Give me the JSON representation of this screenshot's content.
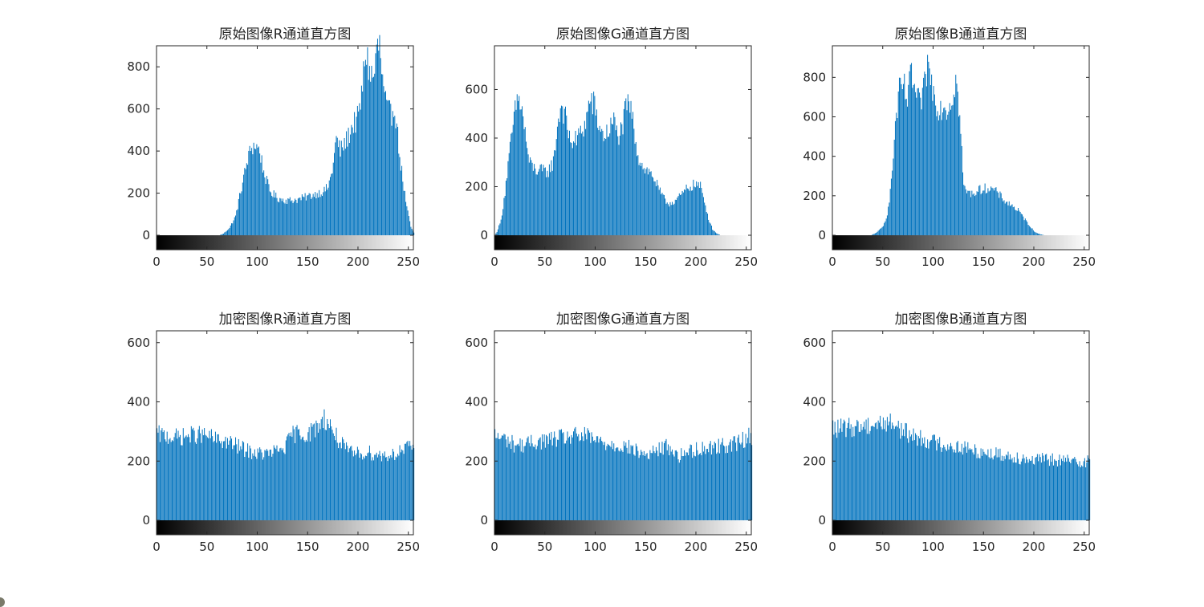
{
  "colors": {
    "bar": "#0072BD",
    "axis": "#262626",
    "background": "#ffffff"
  },
  "chart_data": [
    {
      "type": "bar",
      "title": "原始图像R通道直方图",
      "xlim": [
        0,
        255
      ],
      "ylim": [
        -70,
        900
      ],
      "xticks": [
        0,
        50,
        100,
        150,
        200,
        250
      ],
      "yticks": [
        0,
        200,
        400,
        600,
        800
      ],
      "colorbar": "grayscale",
      "profile": [
        [
          0,
          0
        ],
        [
          62,
          0
        ],
        [
          66,
          8
        ],
        [
          72,
          35
        ],
        [
          78,
          90
        ],
        [
          84,
          230
        ],
        [
          90,
          360
        ],
        [
          94,
          420
        ],
        [
          98,
          428
        ],
        [
          102,
          400
        ],
        [
          106,
          300
        ],
        [
          112,
          210
        ],
        [
          120,
          175
        ],
        [
          130,
          165
        ],
        [
          140,
          170
        ],
        [
          150,
          185
        ],
        [
          160,
          200
        ],
        [
          166,
          210
        ],
        [
          170,
          230
        ],
        [
          174,
          310
        ],
        [
          178,
          460
        ],
        [
          182,
          400
        ],
        [
          188,
          450
        ],
        [
          194,
          520
        ],
        [
          200,
          560
        ],
        [
          204,
          700
        ],
        [
          207,
          880
        ],
        [
          211,
          780
        ],
        [
          215,
          740
        ],
        [
          218,
          880
        ],
        [
          221,
          900
        ],
        [
          224,
          720
        ],
        [
          228,
          600
        ],
        [
          232,
          570
        ],
        [
          236,
          620
        ],
        [
          240,
          420
        ],
        [
          244,
          260
        ],
        [
          248,
          130
        ],
        [
          252,
          40
        ],
        [
          255,
          12
        ]
      ]
    },
    {
      "type": "bar",
      "title": "原始图像G通道直方图",
      "xlim": [
        0,
        255
      ],
      "ylim": [
        -60,
        780
      ],
      "xticks": [
        0,
        50,
        100,
        150,
        200,
        250
      ],
      "yticks": [
        0,
        200,
        400,
        600
      ],
      "colorbar": "grayscale",
      "profile": [
        [
          0,
          0
        ],
        [
          2,
          15
        ],
        [
          6,
          60
        ],
        [
          10,
          180
        ],
        [
          14,
          320
        ],
        [
          18,
          450
        ],
        [
          22,
          560
        ],
        [
          26,
          540
        ],
        [
          30,
          420
        ],
        [
          34,
          300
        ],
        [
          40,
          270
        ],
        [
          46,
          265
        ],
        [
          52,
          260
        ],
        [
          58,
          300
        ],
        [
          62,
          450
        ],
        [
          66,
          545
        ],
        [
          70,
          480
        ],
        [
          74,
          400
        ],
        [
          78,
          380
        ],
        [
          82,
          400
        ],
        [
          86,
          430
        ],
        [
          90,
          460
        ],
        [
          94,
          555
        ],
        [
          98,
          540
        ],
        [
          102,
          470
        ],
        [
          106,
          420
        ],
        [
          110,
          410
        ],
        [
          114,
          440
        ],
        [
          118,
          470
        ],
        [
          122,
          410
        ],
        [
          126,
          430
        ],
        [
          130,
          520
        ],
        [
          134,
          540
        ],
        [
          138,
          440
        ],
        [
          142,
          330
        ],
        [
          146,
          290
        ],
        [
          150,
          270
        ],
        [
          156,
          250
        ],
        [
          160,
          215
        ],
        [
          166,
          160
        ],
        [
          172,
          130
        ],
        [
          178,
          140
        ],
        [
          184,
          160
        ],
        [
          190,
          190
        ],
        [
          196,
          205
        ],
        [
          200,
          210
        ],
        [
          204,
          200
        ],
        [
          208,
          140
        ],
        [
          212,
          70
        ],
        [
          216,
          25
        ],
        [
          220,
          8
        ],
        [
          224,
          0
        ],
        [
          255,
          0
        ]
      ]
    },
    {
      "type": "bar",
      "title": "原始图像B通道直方图",
      "xlim": [
        0,
        255
      ],
      "ylim": [
        -70,
        960
      ],
      "xticks": [
        0,
        50,
        100,
        150,
        200,
        250
      ],
      "yticks": [
        0,
        200,
        400,
        600,
        800
      ],
      "colorbar": "grayscale",
      "profile": [
        [
          0,
          0
        ],
        [
          38,
          0
        ],
        [
          42,
          10
        ],
        [
          46,
          25
        ],
        [
          50,
          45
        ],
        [
          54,
          110
        ],
        [
          58,
          260
        ],
        [
          62,
          560
        ],
        [
          66,
          720
        ],
        [
          70,
          760
        ],
        [
          74,
          680
        ],
        [
          78,
          820
        ],
        [
          82,
          710
        ],
        [
          86,
          660
        ],
        [
          90,
          720
        ],
        [
          94,
          870
        ],
        [
          98,
          770
        ],
        [
          102,
          690
        ],
        [
          106,
          640
        ],
        [
          110,
          660
        ],
        [
          114,
          640
        ],
        [
          118,
          690
        ],
        [
          122,
          800
        ],
        [
          126,
          600
        ],
        [
          130,
          240
        ],
        [
          136,
          210
        ],
        [
          142,
          220
        ],
        [
          148,
          235
        ],
        [
          154,
          240
        ],
        [
          160,
          230
        ],
        [
          166,
          200
        ],
        [
          172,
          170
        ],
        [
          178,
          150
        ],
        [
          184,
          125
        ],
        [
          190,
          85
        ],
        [
          196,
          45
        ],
        [
          200,
          18
        ],
        [
          206,
          5
        ],
        [
          210,
          0
        ],
        [
          255,
          0
        ]
      ]
    },
    {
      "type": "bar",
      "title": "加密图像R通道直方图",
      "xlim": [
        0,
        255
      ],
      "ylim": [
        -45,
        640
      ],
      "xticks": [
        0,
        50,
        100,
        150,
        200,
        250
      ],
      "yticks": [
        0,
        200,
        400,
        600
      ],
      "colorbar": "grayscale",
      "profile": [
        [
          0,
          290
        ],
        [
          10,
          285
        ],
        [
          20,
          280
        ],
        [
          30,
          285
        ],
        [
          40,
          290
        ],
        [
          50,
          285
        ],
        [
          60,
          270
        ],
        [
          70,
          265
        ],
        [
          80,
          250
        ],
        [
          90,
          235
        ],
        [
          100,
          225
        ],
        [
          110,
          225
        ],
        [
          120,
          235
        ],
        [
          128,
          250
        ],
        [
          134,
          290
        ],
        [
          140,
          295
        ],
        [
          150,
          290
        ],
        [
          160,
          320
        ],
        [
          166,
          345
        ],
        [
          172,
          320
        ],
        [
          180,
          270
        ],
        [
          190,
          230
        ],
        [
          200,
          225
        ],
        [
          210,
          230
        ],
        [
          220,
          220
        ],
        [
          230,
          220
        ],
        [
          240,
          230
        ],
        [
          250,
          245
        ],
        [
          255,
          250
        ]
      ]
    },
    {
      "type": "bar",
      "title": "加密图像G通道直方图",
      "xlim": [
        0,
        255
      ],
      "ylim": [
        -45,
        640
      ],
      "xticks": [
        0,
        50,
        100,
        150,
        200,
        250
      ],
      "yticks": [
        0,
        200,
        400,
        600
      ],
      "colorbar": "grayscale",
      "profile": [
        [
          0,
          285
        ],
        [
          10,
          275
        ],
        [
          20,
          255
        ],
        [
          30,
          255
        ],
        [
          40,
          265
        ],
        [
          50,
          270
        ],
        [
          60,
          275
        ],
        [
          70,
          280
        ],
        [
          80,
          285
        ],
        [
          90,
          285
        ],
        [
          100,
          270
        ],
        [
          110,
          260
        ],
        [
          120,
          255
        ],
        [
          130,
          250
        ],
        [
          140,
          235
        ],
        [
          150,
          220
        ],
        [
          160,
          235
        ],
        [
          170,
          250
        ],
        [
          176,
          240
        ],
        [
          182,
          215
        ],
        [
          190,
          230
        ],
        [
          200,
          240
        ],
        [
          210,
          245
        ],
        [
          220,
          250
        ],
        [
          230,
          255
        ],
        [
          240,
          260
        ],
        [
          250,
          280
        ],
        [
          255,
          285
        ]
      ]
    },
    {
      "type": "bar",
      "title": "加密图像B通道直方图",
      "xlim": [
        0,
        255
      ],
      "ylim": [
        -45,
        640
      ],
      "xticks": [
        0,
        50,
        100,
        150,
        200,
        250
      ],
      "yticks": [
        0,
        200,
        400,
        600
      ],
      "colorbar": "grayscale",
      "profile": [
        [
          0,
          310
        ],
        [
          10,
          310
        ],
        [
          20,
          315
        ],
        [
          30,
          320
        ],
        [
          40,
          325
        ],
        [
          50,
          330
        ],
        [
          60,
          330
        ],
        [
          70,
          300
        ],
        [
          80,
          285
        ],
        [
          90,
          275
        ],
        [
          100,
          265
        ],
        [
          110,
          255
        ],
        [
          120,
          250
        ],
        [
          130,
          245
        ],
        [
          140,
          235
        ],
        [
          150,
          230
        ],
        [
          160,
          225
        ],
        [
          170,
          220
        ],
        [
          180,
          215
        ],
        [
          190,
          210
        ],
        [
          200,
          205
        ],
        [
          210,
          205
        ],
        [
          220,
          205
        ],
        [
          230,
          200
        ],
        [
          240,
          200
        ],
        [
          250,
          200
        ],
        [
          255,
          200
        ]
      ]
    }
  ]
}
